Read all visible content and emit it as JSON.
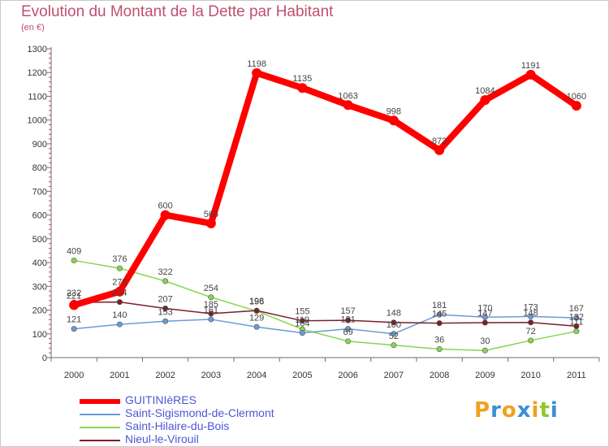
{
  "header": {
    "title": "Evolution du Montant de la Dette par Habitant",
    "subtitle": "(en €)"
  },
  "chart_data": {
    "type": "line",
    "title": "Evolution du Montant de la Dette par Habitant",
    "ylabel": "(en €)",
    "xlabel": "",
    "x": [
      "2000",
      "2001",
      "2002",
      "2003",
      "2004",
      "2005",
      "2006",
      "2007",
      "2008",
      "2009",
      "2010",
      "2011"
    ],
    "ylim": [
      0,
      1300
    ],
    "yticks": [
      0,
      100,
      200,
      300,
      400,
      500,
      600,
      700,
      800,
      900,
      1000,
      1100,
      1200,
      1300
    ],
    "grid": false,
    "legend_position": "bottom-left",
    "series": [
      {
        "name": "GUITINIèRES",
        "color": "#ff0000",
        "values": [
          221,
          278,
          600,
          565,
          1198,
          1135,
          1063,
          998,
          873,
          1084,
          1191,
          1060
        ],
        "labels": [
          "221",
          "278",
          "600",
          "565",
          "1198",
          "1135",
          "1063",
          "998",
          "873",
          "1084",
          "1191",
          "1060"
        ]
      },
      {
        "name": "Saint-Sigismond-de-Clermont",
        "color": "#6a9bd8",
        "values": [
          121,
          140,
          153,
          161,
          129,
          104,
          121,
          100,
          181,
          170,
          173,
          167
        ],
        "labels": [
          "121",
          "140",
          "153",
          "161",
          "129",
          "104",
          "121",
          "100",
          "181",
          "170",
          "173",
          "167"
        ]
      },
      {
        "name": "Saint-Hilaire-du-Bois",
        "color": "#88d650",
        "values": [
          409,
          376,
          322,
          254,
          196,
          119,
          69,
          52,
          36,
          30,
          72,
          111
        ],
        "labels": [
          "409",
          "376",
          "322",
          "254",
          "196",
          "119",
          "69",
          "52",
          "36",
          "30",
          "72",
          "111"
        ]
      },
      {
        "name": "Nieul-le-Virouil",
        "color": "#7a1f2a",
        "values": [
          232,
          234,
          207,
          185,
          198,
          155,
          157,
          148,
          145,
          147,
          148,
          132
        ],
        "labels": [
          "232",
          "234",
          "207",
          "185",
          "198",
          "155",
          "157",
          "148",
          "145",
          "147",
          "148",
          "132"
        ]
      }
    ]
  },
  "legend": [
    {
      "label": "GUITINIèRES",
      "color": "#ff0000"
    },
    {
      "label": "Saint-Sigismond-de-Clermont",
      "color": "#6a9bd8"
    },
    {
      "label": "Saint-Hilaire-du-Bois",
      "color": "#88d650"
    },
    {
      "label": "Nieul-le-Virouil",
      "color": "#7a1f2a"
    }
  ],
  "logo": {
    "letters": [
      "P",
      "r",
      "o",
      "x",
      "i",
      "t",
      "i"
    ],
    "colors": [
      "#f0a020",
      "#3a90d0",
      "#f0a020",
      "#3a90d0",
      "#f0a020",
      "#90c830",
      "#3a90d0"
    ]
  }
}
